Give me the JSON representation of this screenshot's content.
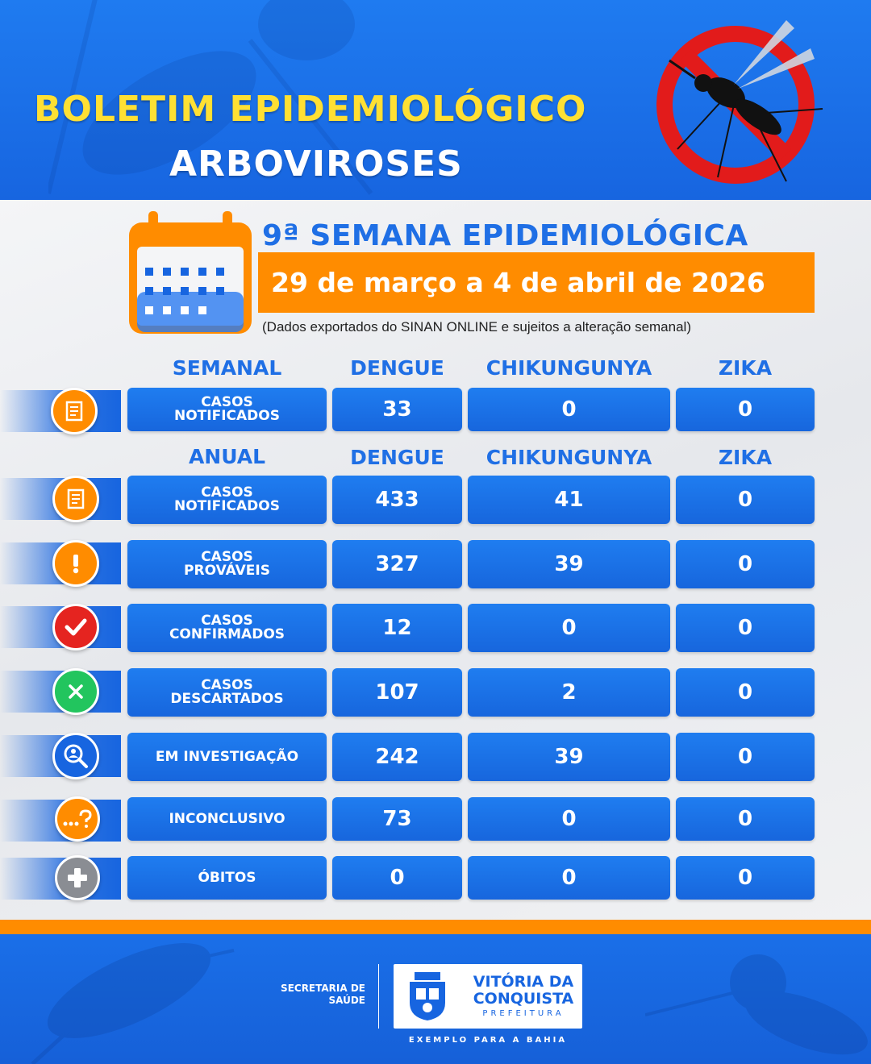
{
  "header": {
    "title_line1": "BOLETIM EPIDEMIOLÓGICO",
    "title_line2": "ARBOVIROSES"
  },
  "week": {
    "title": "9ª SEMANA EPIDEMIOLÓGICA",
    "date_range": "29 de março a 4 de abril de 2026",
    "note": "(Dados exportados do SINAN ONLINE e sujeitos a alteração semanal)"
  },
  "weekly": {
    "headers": [
      "SEMANAL",
      "DENGUE",
      "CHIKUNGUNYA",
      "ZIKA"
    ],
    "rows": [
      {
        "label_line1": "CASOS",
        "label_line2": "NOTIFICADOS",
        "dengue": "33",
        "chikungunya": "0",
        "zika": "0",
        "icon": "document-icon",
        "icon_color": "#ff8c00"
      }
    ]
  },
  "annual": {
    "headers": [
      "ANUAL",
      "DENGUE",
      "CHIKUNGUNYA",
      "ZIKA"
    ],
    "rows": [
      {
        "label_line1": "CASOS",
        "label_line2": "NOTIFICADOS",
        "dengue": "433",
        "chikungunya": "41",
        "zika": "0",
        "icon": "document-icon",
        "icon_color": "#ff8c00"
      },
      {
        "label_line1": "CASOS",
        "label_line2": "PROVÁVEIS",
        "dengue": "327",
        "chikungunya": "39",
        "zika": "0",
        "icon": "exclamation-icon",
        "icon_color": "#ff8c00"
      },
      {
        "label_line1": "CASOS",
        "label_line2": "CONFIRMADOS",
        "dengue": "12",
        "chikungunya": "0",
        "zika": "0",
        "icon": "checkmark-icon",
        "icon_color": "#e52420"
      },
      {
        "label_line1": "CASOS",
        "label_line2": "DESCARTADOS",
        "dengue": "107",
        "chikungunya": "2",
        "zika": "0",
        "icon": "cross-icon",
        "icon_color": "#22c55e"
      },
      {
        "label_line1": "EM INVESTIGAÇÃO",
        "label_line2": "",
        "dengue": "242",
        "chikungunya": "39",
        "zika": "0",
        "icon": "magnifier-person-icon",
        "icon_color": "#1765e0"
      },
      {
        "label_line1": "INCONCLUSIVO",
        "label_line2": "",
        "dengue": "73",
        "chikungunya": "0",
        "zika": "0",
        "icon": "question-icon",
        "icon_color": "#ff8c00"
      },
      {
        "label_line1": "ÓBITOS",
        "label_line2": "",
        "dengue": "0",
        "chikungunya": "0",
        "zika": "0",
        "icon": "plus-icon",
        "icon_color": "#8a8d93"
      }
    ]
  },
  "footer": {
    "secretaria_line1": "SECRETARIA DE",
    "secretaria_line2": "SAÚDE",
    "brand_line1": "VITÓRIA DA",
    "brand_line2": "CONQUISTA",
    "brand_sub": "PREFEITURA",
    "slogan": "EXEMPLO PARA A BAHIA"
  }
}
